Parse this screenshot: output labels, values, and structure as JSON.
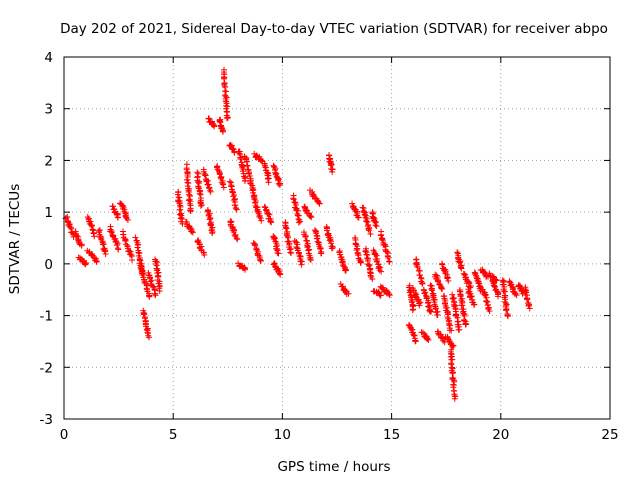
{
  "chart_data": {
    "type": "scatter",
    "title": "Day 202 of 2021, Sidereal Day-to-day VTEC variation (SDTVAR) for receiver abpo",
    "xlabel": "GPS time / hours",
    "ylabel": "SDTVAR / TECUs",
    "xlim": [
      0,
      25
    ],
    "ylim": [
      -3,
      4
    ],
    "xticks": [
      0,
      5,
      10,
      15,
      20,
      25
    ],
    "xtick_labels": [
      "0",
      "5",
      "10",
      "15",
      "20",
      "25"
    ],
    "yticks": [
      -3,
      -2,
      -1,
      0,
      1,
      2,
      3,
      4
    ],
    "ytick_labels": [
      "-3",
      "-2",
      "-1",
      "0",
      "1",
      "2",
      "3",
      "4"
    ],
    "grid": true,
    "marker": "+",
    "marker_color": "#ff0000",
    "series": [
      {
        "name": "SDTVAR",
        "tracks": [
          {
            "x": [
              0.1,
              0.4
            ],
            "y": [
              0.9,
              0.55
            ]
          },
          {
            "x": [
              0.5,
              0.8
            ],
            "y": [
              0.6,
              0.35
            ]
          },
          {
            "x": [
              0.7,
              1.0
            ],
            "y": [
              0.1,
              0.0
            ]
          },
          {
            "x": [
              1.1,
              1.4
            ],
            "y": [
              0.9,
              0.55
            ]
          },
          {
            "x": [
              1.1,
              1.5
            ],
            "y": [
              0.25,
              0.05
            ]
          },
          {
            "x": [
              1.6,
              1.9
            ],
            "y": [
              0.65,
              0.2
            ]
          },
          {
            "x": [
              2.2,
              2.5
            ],
            "y": [
              1.1,
              0.9
            ]
          },
          {
            "x": [
              2.1,
              2.5
            ],
            "y": [
              0.7,
              0.3
            ]
          },
          {
            "x": [
              2.6,
              2.9
            ],
            "y": [
              1.2,
              0.85
            ]
          },
          {
            "x": [
              2.7,
              3.1
            ],
            "y": [
              0.6,
              0.1
            ]
          },
          {
            "x": [
              3.3,
              3.6
            ],
            "y": [
              0.5,
              -0.2
            ]
          },
          {
            "x": [
              3.5,
              3.9
            ],
            "y": [
              0.0,
              -0.65
            ]
          },
          {
            "x": [
              3.6,
              3.9
            ],
            "y": [
              -0.9,
              -1.4
            ]
          },
          {
            "x": [
              3.9,
              4.2
            ],
            "y": [
              -0.2,
              -0.6
            ]
          },
          {
            "x": [
              4.2,
              4.4
            ],
            "y": [
              0.1,
              -0.5
            ]
          },
          {
            "x": [
              5.2,
              5.4
            ],
            "y": [
              1.4,
              0.8
            ]
          },
          {
            "x": [
              5.6,
              5.8
            ],
            "y": [
              1.9,
              1.0
            ]
          },
          {
            "x": [
              5.6,
              5.9
            ],
            "y": [
              0.8,
              0.6
            ]
          },
          {
            "x": [
              6.1,
              6.3
            ],
            "y": [
              1.75,
              1.1
            ]
          },
          {
            "x": [
              6.1,
              6.4
            ],
            "y": [
              0.45,
              0.2
            ]
          },
          {
            "x": [
              6.4,
              6.7
            ],
            "y": [
              1.8,
              1.4
            ]
          },
          {
            "x": [
              6.6,
              6.8
            ],
            "y": [
              1.05,
              0.6
            ]
          },
          {
            "x": [
              6.6,
              6.9
            ],
            "y": [
              2.8,
              2.65
            ]
          },
          {
            "x": [
              7.1,
              7.3
            ],
            "y": [
              2.8,
              2.55
            ]
          },
          {
            "x": [
              7.3,
              7.5
            ],
            "y": [
              3.75,
              2.8
            ]
          },
          {
            "x": [
              7.0,
              7.3
            ],
            "y": [
              1.9,
              1.5
            ]
          },
          {
            "x": [
              7.6,
              7.8
            ],
            "y": [
              2.3,
              2.15
            ]
          },
          {
            "x": [
              7.6,
              7.9
            ],
            "y": [
              1.6,
              1.05
            ]
          },
          {
            "x": [
              7.6,
              7.9
            ],
            "y": [
              0.85,
              0.5
            ]
          },
          {
            "x": [
              8.0,
              8.3
            ],
            "y": [
              2.2,
              1.6
            ]
          },
          {
            "x": [
              8.0,
              8.3
            ],
            "y": [
              0.0,
              -0.1
            ]
          },
          {
            "x": [
              8.3,
              8.7
            ],
            "y": [
              2.1,
              1.3
            ]
          },
          {
            "x": [
              8.7,
              9.1
            ],
            "y": [
              2.1,
              2.0
            ]
          },
          {
            "x": [
              8.7,
              9.0
            ],
            "y": [
              1.3,
              0.85
            ]
          },
          {
            "x": [
              8.7,
              9.0
            ],
            "y": [
              0.4,
              0.05
            ]
          },
          {
            "x": [
              9.2,
              9.4
            ],
            "y": [
              1.95,
              1.6
            ]
          },
          {
            "x": [
              9.2,
              9.5
            ],
            "y": [
              1.1,
              0.8
            ]
          },
          {
            "x": [
              9.6,
              9.9
            ],
            "y": [
              1.9,
              1.5
            ]
          },
          {
            "x": [
              9.6,
              9.8
            ],
            "y": [
              0.55,
              0.2
            ]
          },
          {
            "x": [
              9.6,
              9.9
            ],
            "y": [
              0.0,
              -0.2
            ]
          },
          {
            "x": [
              10.1,
              10.4
            ],
            "y": [
              0.8,
              0.2
            ]
          },
          {
            "x": [
              10.5,
              10.8
            ],
            "y": [
              1.3,
              0.8
            ]
          },
          {
            "x": [
              10.6,
              10.9
            ],
            "y": [
              0.45,
              0.0
            ]
          },
          {
            "x": [
              11.0,
              11.3
            ],
            "y": [
              1.1,
              0.9
            ]
          },
          {
            "x": [
              11.0,
              11.3
            ],
            "y": [
              0.6,
              0.1
            ]
          },
          {
            "x": [
              11.3,
              11.7
            ],
            "y": [
              1.4,
              1.15
            ]
          },
          {
            "x": [
              11.5,
              11.8
            ],
            "y": [
              0.65,
              0.2
            ]
          },
          {
            "x": [
              12.1,
              12.3
            ],
            "y": [
              2.1,
              1.8
            ]
          },
          {
            "x": [
              12.0,
              12.3
            ],
            "y": [
              0.7,
              0.3
            ]
          },
          {
            "x": [
              12.6,
              12.9
            ],
            "y": [
              0.25,
              -0.15
            ]
          },
          {
            "x": [
              12.7,
              13.0
            ],
            "y": [
              -0.4,
              -0.6
            ]
          },
          {
            "x": [
              13.2,
              13.5
            ],
            "y": [
              1.15,
              0.9
            ]
          },
          {
            "x": [
              13.3,
              13.6
            ],
            "y": [
              0.5,
              0.0
            ]
          },
          {
            "x": [
              13.7,
              14.0
            ],
            "y": [
              1.1,
              0.6
            ]
          },
          {
            "x": [
              13.8,
              14.1
            ],
            "y": [
              0.3,
              -0.3
            ]
          },
          {
            "x": [
              14.1,
              14.3
            ],
            "y": [
              1.0,
              0.75
            ]
          },
          {
            "x": [
              14.2,
              14.5
            ],
            "y": [
              0.25,
              -0.15
            ]
          },
          {
            "x": [
              14.2,
              14.5
            ],
            "y": [
              -0.5,
              -0.6
            ]
          },
          {
            "x": [
              14.5,
              14.9
            ],
            "y": [
              0.6,
              0.05
            ]
          },
          {
            "x": [
              14.5,
              14.9
            ],
            "y": [
              -0.45,
              -0.6
            ]
          },
          {
            "x": [
              15.8,
              16.0
            ],
            "y": [
              -0.4,
              -0.9
            ]
          },
          {
            "x": [
              15.8,
              16.1
            ],
            "y": [
              -1.15,
              -1.5
            ]
          },
          {
            "x": [
              16.0,
              16.3
            ],
            "y": [
              -0.5,
              -0.8
            ]
          },
          {
            "x": [
              16.1,
              16.4
            ],
            "y": [
              0.1,
              -0.4
            ]
          },
          {
            "x": [
              16.4,
              16.7
            ],
            "y": [
              -1.35,
              -1.45
            ]
          },
          {
            "x": [
              16.5,
              16.8
            ],
            "y": [
              -0.5,
              -0.95
            ]
          },
          {
            "x": [
              16.8,
              17.1
            ],
            "y": [
              -0.4,
              -1.0
            ]
          },
          {
            "x": [
              17.0,
              17.3
            ],
            "y": [
              -0.2,
              -0.5
            ]
          },
          {
            "x": [
              17.1,
              17.4
            ],
            "y": [
              -1.3,
              -1.5
            ]
          },
          {
            "x": [
              17.3,
              17.6
            ],
            "y": [
              0.0,
              -0.3
            ]
          },
          {
            "x": [
              17.4,
              17.7
            ],
            "y": [
              -0.6,
              -1.3
            ]
          },
          {
            "x": [
              17.5,
              17.8
            ],
            "y": [
              -1.4,
              -1.6
            ]
          },
          {
            "x": [
              17.7,
              17.9
            ],
            "y": [
              -1.65,
              -2.6
            ]
          },
          {
            "x": [
              17.8,
              18.1
            ],
            "y": [
              -0.6,
              -1.3
            ]
          },
          {
            "x": [
              18.0,
              18.2
            ],
            "y": [
              0.2,
              -0.1
            ]
          },
          {
            "x": [
              18.1,
              18.4
            ],
            "y": [
              -0.5,
              -1.2
            ]
          },
          {
            "x": [
              18.3,
              18.6
            ],
            "y": [
              -0.2,
              -0.45
            ]
          },
          {
            "x": [
              18.5,
              18.8
            ],
            "y": [
              -0.5,
              -0.8
            ]
          },
          {
            "x": [
              18.8,
              19.1
            ],
            "y": [
              -0.15,
              -0.5
            ]
          },
          {
            "x": [
              19.1,
              19.4
            ],
            "y": [
              -0.1,
              -0.25
            ]
          },
          {
            "x": [
              19.2,
              19.5
            ],
            "y": [
              -0.5,
              -0.9
            ]
          },
          {
            "x": [
              19.5,
              19.8
            ],
            "y": [
              -0.2,
              -0.35
            ]
          },
          {
            "x": [
              19.6,
              19.9
            ],
            "y": [
              -0.35,
              -0.6
            ]
          },
          {
            "x": [
              20.1,
              20.3
            ],
            "y": [
              -0.3,
              -1.0
            ]
          },
          {
            "x": [
              20.4,
              20.7
            ],
            "y": [
              -0.35,
              -0.6
            ]
          },
          {
            "x": [
              20.8,
              21.0
            ],
            "y": [
              -0.4,
              -0.55
            ]
          },
          {
            "x": [
              21.1,
              21.3
            ],
            "y": [
              -0.45,
              -0.85
            ]
          }
        ]
      }
    ]
  }
}
